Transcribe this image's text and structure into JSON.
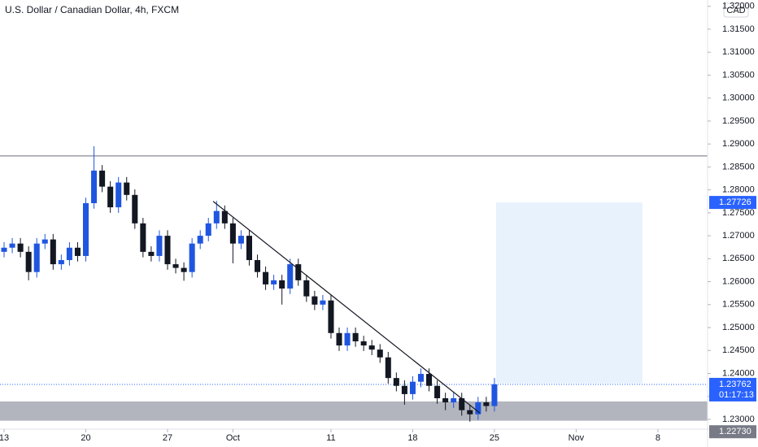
{
  "chart_data": {
    "type": "candlestick",
    "title": "U.S. Dollar / Canadian Dollar, 4h, FXCM",
    "currency_button": "CAD",
    "up_color": "#1f56e0",
    "down_color": "#131722",
    "x": [
      0,
      0.5,
      1,
      1.5,
      2,
      2.5,
      3,
      3.5,
      4,
      4.5,
      5,
      5.5,
      6,
      6.5,
      7,
      7.5,
      8,
      8.5,
      9,
      9.5,
      10,
      10.5,
      11,
      11.5,
      12,
      12.5,
      13,
      13.5,
      14,
      14.5,
      15,
      15.5,
      16,
      16.5,
      17,
      17.5,
      18,
      18.5,
      19,
      19.5,
      20,
      20.5,
      21,
      21.5,
      22,
      22.5,
      23,
      23.5,
      24,
      24.5,
      25,
      25.5,
      26,
      26.5,
      27,
      27.5,
      28,
      28.5,
      29,
      29.5,
      30
    ],
    "open": [
      1.2665,
      1.2674,
      1.2683,
      1.2665,
      1.2621,
      1.2683,
      1.2692,
      1.2638,
      1.2647,
      1.2674,
      1.2656,
      1.2771,
      1.2842,
      1.2807,
      1.2762,
      1.2816,
      1.2789,
      1.2727,
      1.2665,
      1.2656,
      1.27,
      1.2638,
      1.263,
      1.2621,
      1.2683,
      1.27,
      1.2727,
      1.2754,
      1.2727,
      1.2683,
      1.27,
      1.2647,
      1.2621,
      1.2594,
      1.2603,
      1.2585,
      1.2638,
      1.2603,
      1.2568,
      1.255,
      1.2559,
      1.2488,
      1.2461,
      1.2488,
      1.247,
      1.2461,
      1.2452,
      1.2435,
      1.239,
      1.2373,
      1.2355,
      1.2382,
      1.2399,
      1.2373,
      1.2346,
      1.2337,
      1.2346,
      1.232,
      1.2311,
      1.2337,
      1.2329
    ],
    "high": [
      1.2686,
      1.2695,
      1.2695,
      1.2677,
      1.2695,
      1.2704,
      1.2704,
      1.2659,
      1.2686,
      1.2686,
      1.2783,
      1.2895,
      1.2854,
      1.2819,
      1.2828,
      1.2828,
      1.2801,
      1.2739,
      1.2677,
      1.2712,
      1.2712,
      1.265,
      1.2642,
      1.2695,
      1.2712,
      1.2739,
      1.2776,
      1.2766,
      1.2739,
      1.2712,
      1.2712,
      1.2659,
      1.2633,
      1.2615,
      1.2615,
      1.265,
      1.265,
      1.2615,
      1.258,
      1.2571,
      1.2571,
      1.25,
      1.25,
      1.25,
      1.2482,
      1.2473,
      1.2464,
      1.2447,
      1.2402,
      1.2385,
      1.2394,
      1.2411,
      1.2411,
      1.2385,
      1.2358,
      1.2358,
      1.2358,
      1.2332,
      1.2349,
      1.2349,
      1.239
    ],
    "low": [
      1.2653,
      1.2662,
      1.2653,
      1.2603,
      1.2609,
      1.2671,
      1.2626,
      1.2626,
      1.2635,
      1.2644,
      1.2644,
      1.2759,
      1.2795,
      1.275,
      1.275,
      1.2777,
      1.2715,
      1.2653,
      1.2644,
      1.2644,
      1.2626,
      1.2618,
      1.2602,
      1.2609,
      1.2671,
      1.2688,
      1.2715,
      1.2715,
      1.264,
      1.2671,
      1.2635,
      1.2609,
      1.2582,
      1.2582,
      1.255,
      1.2573,
      1.2591,
      1.2556,
      1.2538,
      1.2538,
      1.2476,
      1.2449,
      1.2449,
      1.2458,
      1.2449,
      1.244,
      1.2423,
      1.2378,
      1.2361,
      1.2332,
      1.2343,
      1.237,
      1.2361,
      1.2334,
      1.232,
      1.2325,
      1.2308,
      1.2295,
      1.2299,
      1.2317,
      1.2317
    ],
    "close": [
      1.2674,
      1.2683,
      1.2665,
      1.2621,
      1.2683,
      1.2692,
      1.2638,
      1.2647,
      1.2674,
      1.2656,
      1.2771,
      1.2842,
      1.2807,
      1.2762,
      1.2816,
      1.2789,
      1.2727,
      1.2665,
      1.2656,
      1.27,
      1.2638,
      1.263,
      1.2621,
      1.2683,
      1.27,
      1.2727,
      1.2754,
      1.2727,
      1.2683,
      1.27,
      1.2647,
      1.2621,
      1.2594,
      1.2603,
      1.2585,
      1.2638,
      1.2603,
      1.2568,
      1.255,
      1.2559,
      1.2488,
      1.2461,
      1.2488,
      1.247,
      1.2461,
      1.2452,
      1.2435,
      1.239,
      1.2373,
      1.2355,
      1.2382,
      1.2399,
      1.2373,
      1.2346,
      1.2337,
      1.2346,
      1.232,
      1.2311,
      1.2337,
      1.2329,
      1.23762
    ],
    "xlim": [
      -0.25,
      43.04
    ],
    "ylim": [
      1.22787,
      1.32137
    ],
    "xticks": [
      {
        "value": 0,
        "label": "13"
      },
      {
        "value": 5,
        "label": "20"
      },
      {
        "value": 10,
        "label": "27"
      },
      {
        "value": 14,
        "label": "Oct"
      },
      {
        "value": 20,
        "label": "11"
      },
      {
        "value": 25,
        "label": "18"
      },
      {
        "value": 30,
        "label": "25"
      },
      {
        "value": 35,
        "label": "Nov"
      },
      {
        "value": 40,
        "label": "8"
      }
    ],
    "yticks": [
      {
        "value": 1.23,
        "label": "1.23000"
      },
      {
        "value": 1.235,
        "label": "1.23500"
      },
      {
        "value": 1.24,
        "label": "1.24000"
      },
      {
        "value": 1.245,
        "label": "1.24500"
      },
      {
        "value": 1.25,
        "label": "1.25000"
      },
      {
        "value": 1.255,
        "label": "1.25500"
      },
      {
        "value": 1.26,
        "label": "1.26000"
      },
      {
        "value": 1.265,
        "label": "1.26500"
      },
      {
        "value": 1.27,
        "label": "1.27000"
      },
      {
        "value": 1.275,
        "label": "1.27500"
      },
      {
        "value": 1.28,
        "label": "1.28000"
      },
      {
        "value": 1.285,
        "label": "1.28500"
      },
      {
        "value": 1.29,
        "label": "1.29000"
      },
      {
        "value": 1.295,
        "label": "1.29500"
      },
      {
        "value": 1.3,
        "label": "1.30000"
      },
      {
        "value": 1.305,
        "label": "1.30500"
      },
      {
        "value": 1.31,
        "label": "1.31000"
      },
      {
        "value": 1.315,
        "label": "1.31500"
      },
      {
        "value": 1.32,
        "label": "1.32000"
      }
    ],
    "horizontal_line": {
      "value": 1.2874,
      "color": "#6b6e78"
    },
    "trendline": {
      "x": [
        12.79,
        29.1
      ],
      "y": [
        1.2775,
        1.2314
      ],
      "color": "#131722"
    },
    "zone": {
      "y": [
        1.2297,
        1.2339
      ],
      "color": "#b2b5be"
    },
    "target_box": {
      "x": [
        30.1,
        39.05
      ],
      "y": [
        1.2378,
        1.27726
      ],
      "color": "#e8f2fd"
    },
    "target_label": {
      "value": 1.27726,
      "label": "1.27726"
    },
    "last_price": {
      "value": 1.23762,
      "label": "1.23762",
      "countdown": "01:17:13",
      "color": "#2962ff"
    },
    "bottom_label": {
      "value": 1.2273,
      "label": "1.22730"
    }
  }
}
